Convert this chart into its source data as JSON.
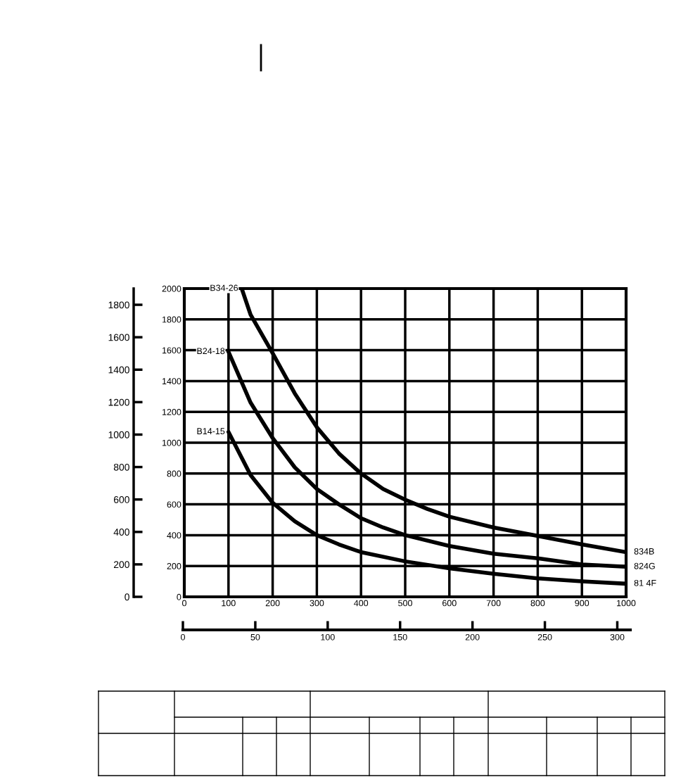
{
  "chart_data": {
    "type": "line",
    "series": [
      {
        "name": "B34-26",
        "color": "#000000",
        "x": [
          130,
          150,
          200,
          250,
          300,
          350,
          400,
          450,
          500,
          550,
          600,
          700,
          800,
          900,
          1000
        ],
        "values": [
          2000,
          1830,
          1580,
          1320,
          1100,
          930,
          800,
          700,
          630,
          570,
          520,
          450,
          395,
          340,
          290
        ]
      },
      {
        "name": "B24-18",
        "color": "#000000",
        "x": [
          100,
          150,
          200,
          250,
          300,
          350,
          400,
          450,
          500,
          600,
          700,
          800,
          900,
          1000
        ],
        "values": [
          1590,
          1260,
          1030,
          840,
          700,
          600,
          510,
          450,
          400,
          330,
          280,
          250,
          210,
          195
        ]
      },
      {
        "name": "B14-15",
        "color": "#000000",
        "x": [
          100,
          150,
          200,
          250,
          300,
          350,
          400,
          500,
          600,
          700,
          800,
          900,
          1000
        ],
        "values": [
          1070,
          790,
          610,
          490,
          400,
          340,
          290,
          230,
          185,
          150,
          120,
          100,
          85
        ]
      }
    ],
    "annotations": [
      "834B",
      "824G",
      "81 4F"
    ],
    "xlim": [
      0,
      1000
    ],
    "xticks": [
      0,
      100,
      200,
      300,
      400,
      500,
      600,
      700,
      800,
      900,
      1000
    ],
    "ylim": [
      0,
      2000
    ],
    "yticks": [
      0,
      200,
      400,
      600,
      800,
      1000,
      1200,
      1400,
      1600,
      1800,
      2000
    ],
    "y2lim": [
      0,
      1900
    ],
    "y2ticks": [
      0,
      200,
      400,
      600,
      800,
      1000,
      1200,
      1400,
      1600,
      1800
    ],
    "x2lim": [
      0,
      309
    ],
    "x2ticks": [
      0,
      50,
      100,
      150,
      200,
      250,
      300
    ],
    "grid": true
  }
}
